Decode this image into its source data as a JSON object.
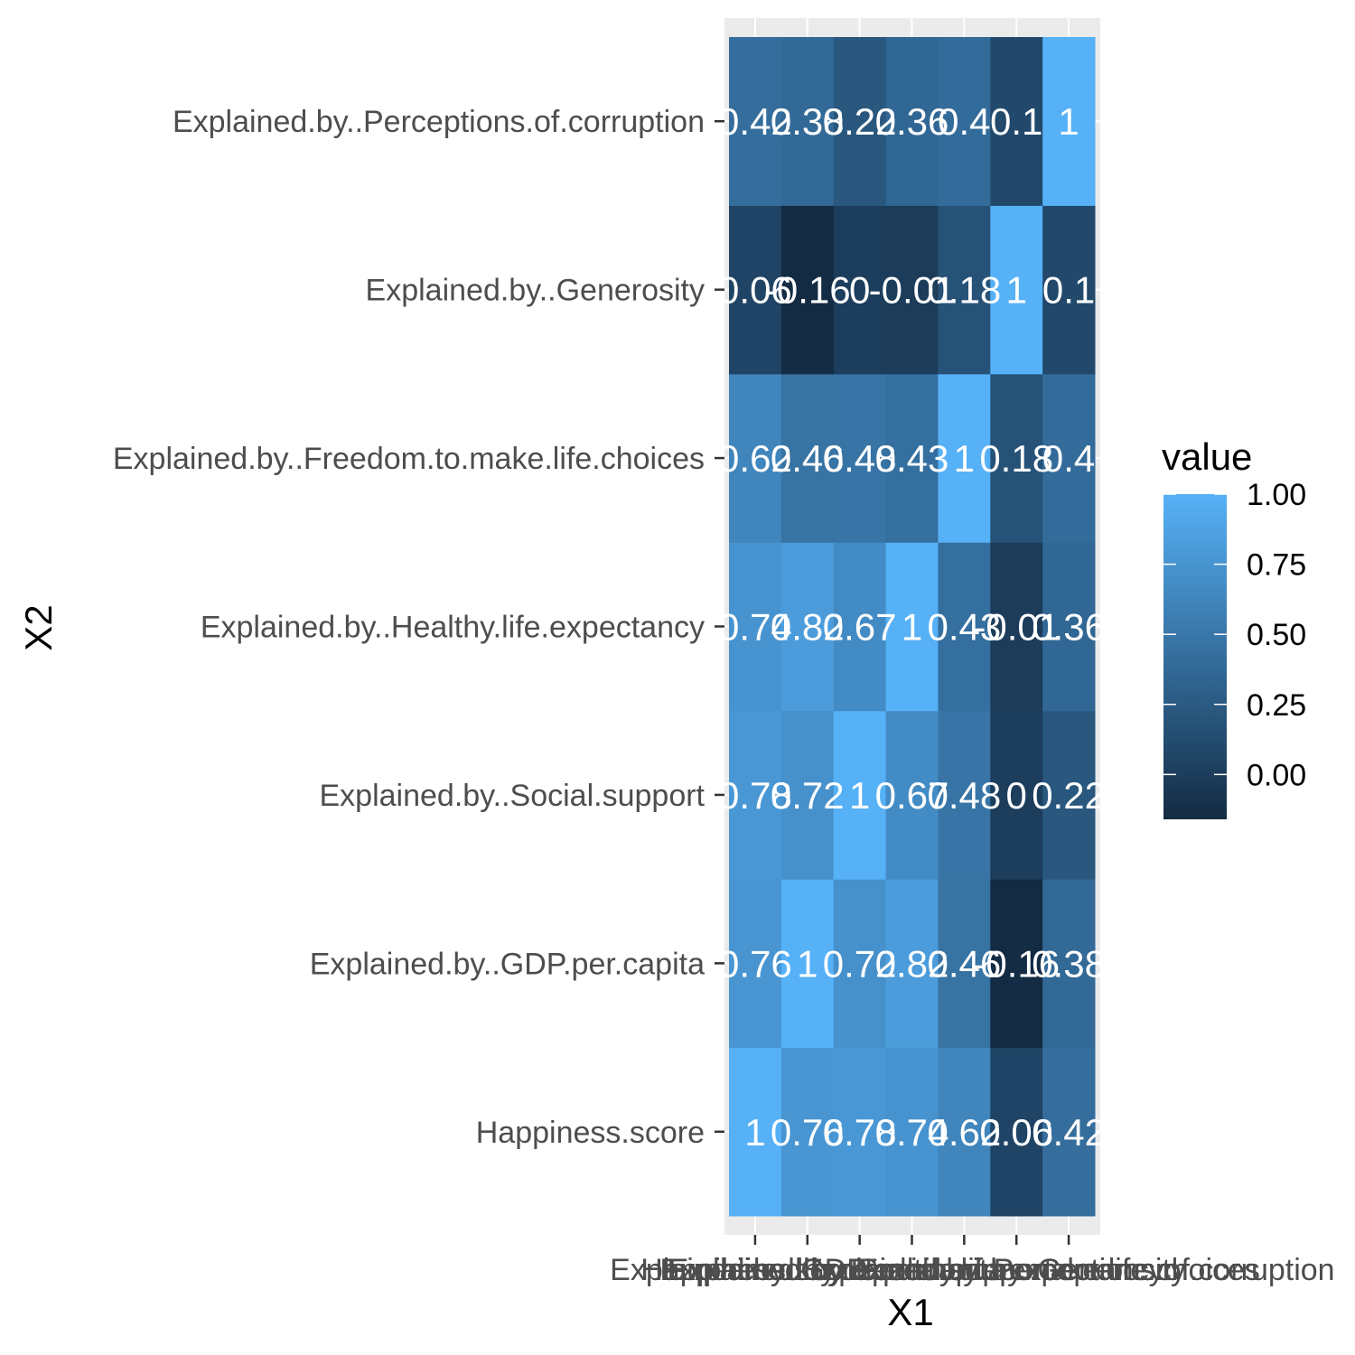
{
  "chart_data": {
    "type": "heatmap",
    "xlabel": "X1",
    "ylabel": "X2",
    "x_categories": [
      "Happiness.score",
      "Explained.by..GDP.per.capita",
      "Explained.by..Social.support",
      "Explained.by..Healthy.life.expectancy",
      "Explained.by..Freedom.to.make.life.choices",
      "Explained.by..Generosity",
      "Explained.by..Perceptions.of.corruption"
    ],
    "y_categories": [
      "Happiness.score",
      "Explained.by..GDP.per.capita",
      "Explained.by..Social.support",
      "Explained.by..Healthy.life.expectancy",
      "Explained.by..Freedom.to.make.life.choices",
      "Explained.by..Generosity",
      "Explained.by..Perceptions.of.corruption"
    ],
    "values": [
      [
        1,
        0.76,
        0.78,
        0.74,
        0.62,
        0.06,
        0.42
      ],
      [
        0.76,
        1,
        0.72,
        0.82,
        0.46,
        -0.16,
        0.38
      ],
      [
        0.78,
        0.72,
        1,
        0.67,
        0.48,
        0,
        0.22
      ],
      [
        0.74,
        0.82,
        0.67,
        1,
        0.43,
        -0.01,
        0.36
      ],
      [
        0.62,
        0.46,
        0.48,
        0.43,
        1,
        0.18,
        0.4
      ],
      [
        0.06,
        -0.16,
        0,
        -0.01,
        0.18,
        1,
        0.1
      ],
      [
        0.42,
        0.38,
        0.22,
        0.36,
        0.4,
        0.1,
        1
      ]
    ],
    "labels": [
      [
        "1",
        "0.76",
        "0.78",
        "0.74",
        "0.62",
        "0.06",
        "0.42"
      ],
      [
        "0.76",
        "1",
        "0.72",
        "0.82",
        "0.46",
        "-0.16",
        "0.38"
      ],
      [
        "0.78",
        "0.72",
        "1",
        "0.67",
        "0.48",
        "0",
        "0.22"
      ],
      [
        "0.74",
        "0.82",
        "0.67",
        "1",
        "0.43",
        "-0.01",
        "0.36"
      ],
      [
        "0.62",
        "0.46",
        "0.48",
        "0.43",
        "1",
        "0.18",
        "0.4"
      ],
      [
        "0.06",
        "-0.16",
        "0",
        "-0.01",
        "0.18",
        "1",
        "0.1"
      ],
      [
        "0.42",
        "0.38",
        "0.22",
        "0.36",
        "0.4",
        "0.1",
        "1"
      ]
    ],
    "legend": {
      "title": "value",
      "placement": "right",
      "ticks": [
        1.0,
        0.75,
        0.5,
        0.25,
        0.0
      ],
      "tick_labels": [
        "1.00",
        "0.75",
        "0.50",
        "0.25",
        "0.00"
      ],
      "range": [
        -0.16,
        1
      ],
      "color_low": "#132b43",
      "color_high": "#56b1f7"
    },
    "panel_background": "#ebebeb",
    "grid": true
  }
}
